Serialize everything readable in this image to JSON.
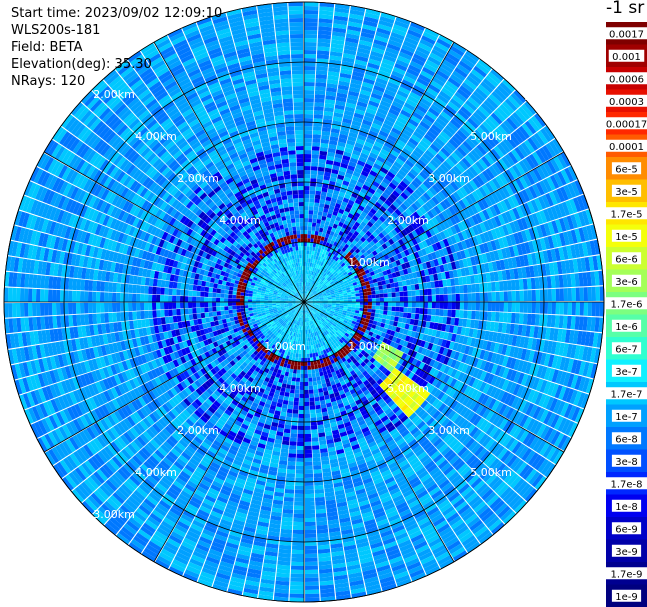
{
  "meta": {
    "start_time": "Start time: 2023/09/02 12:09:10",
    "instrument": "WLS200s-181",
    "field": "Field: BETA",
    "elevation": "Elevation(deg): 35.30",
    "nrays": "NRays: 120"
  },
  "colorbar": {
    "title": "-1 sr",
    "labels": [
      "0.0017",
      "0.001",
      "0.0006",
      "0.0003",
      "0.00017",
      "0.0001",
      "6e-5",
      "3e-5",
      "1.7e-5",
      "1e-5",
      "6e-6",
      "3e-6",
      "1.7e-6",
      "1e-6",
      "6e-7",
      "3e-7",
      "1.7e-7",
      "1e-7",
      "6e-8",
      "3e-8",
      "1.7e-8",
      "1e-8",
      "6e-9",
      "3e-9",
      "1.7e-9",
      "1e-9"
    ],
    "colors": [
      "#7f0000",
      "#a00000",
      "#c80000",
      "#e81000",
      "#ff2800",
      "#ff5a00",
      "#ff8c00",
      "#ffbe00",
      "#ffe600",
      "#f4ff0a",
      "#ccff30",
      "#a4ff58",
      "#7cff80",
      "#56ffa8",
      "#30ffd0",
      "#10f0ff",
      "#00c8ff",
      "#00a0ff",
      "#0078ff",
      "#0050ff",
      "#0028ff",
      "#0000f0",
      "#0000c8",
      "#0000a8",
      "#000090",
      "#00007f"
    ]
  },
  "chart_data": {
    "type": "heatmap",
    "projection": "polar (PPI scan)",
    "range_rings_km": [
      1,
      2,
      3,
      4,
      5
    ],
    "ring_labels": [
      "2.00km",
      "3.00km",
      "4.00km",
      "5.00km",
      "2.00km",
      "3.00km",
      "4.00km",
      "2.00km",
      "3.00km",
      "4.00km",
      "5.00km",
      "2.00km",
      "3.00km",
      "4.00km",
      "5.00km",
      "1.00km",
      "1.00km",
      "1.00km"
    ],
    "n_rays": 120,
    "elevation_deg": 35.3,
    "background_level": "1e-7",
    "features": [
      {
        "shape": "ring",
        "center_range_km": 1.05,
        "width_km": 0.15,
        "level": "1e-4"
      },
      {
        "shape": "ring-core",
        "center_range_km": 1.05,
        "width_km": 0.07,
        "level": "3e-4"
      },
      {
        "shape": "inner disk",
        "range_km": [
          0,
          1.0
        ],
        "level": "1.7e-7"
      },
      {
        "shape": "sparse patches",
        "range_km": [
          1.0,
          2.6
        ],
        "level": "1e-8"
      },
      {
        "shape": "plume",
        "azimuth_deg": 130,
        "range_km": [
          1.9,
          2.6
        ],
        "level": "1e-5"
      },
      {
        "shape": "plume",
        "azimuth_deg": 122,
        "range_km": [
          1.5,
          1.9
        ],
        "level": "3e-6"
      }
    ]
  }
}
